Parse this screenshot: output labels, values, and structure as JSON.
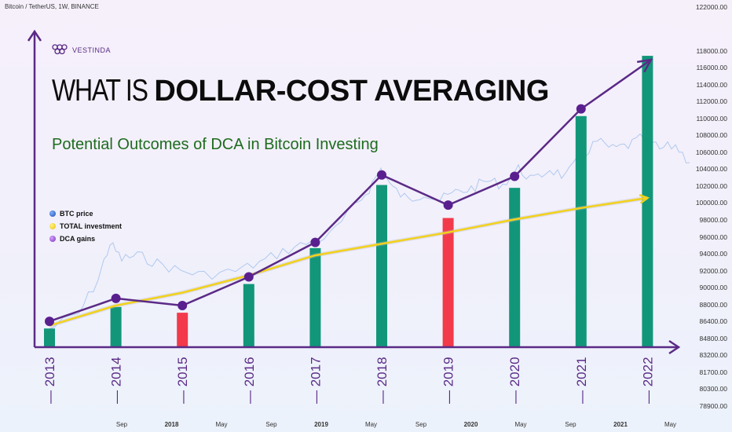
{
  "header": {
    "symbol_label": "Bitcoin / TetherUS, 1W, BINANCE"
  },
  "brand": {
    "name": "VESTINDA",
    "logo_icon": "grape-cluster-icon"
  },
  "headline": {
    "part1": "WHAT IS ",
    "part2": "DOLLAR-COST AVERAGING"
  },
  "subtitle": "Potential Outcomes of DCA in Bitcoin Investing",
  "legend": [
    {
      "label": "BTC price",
      "color": "#2f6fd0"
    },
    {
      "label": "TOTAL investment",
      "color": "#f2d21b"
    },
    {
      "label": "DCA gains",
      "color": "#8e3fc4"
    }
  ],
  "price_axis": [
    "122000.00",
    "118000.00",
    "116000.00",
    "114000.00",
    "112000.00",
    "110000.00",
    "108000.00",
    "106000.00",
    "104000.00",
    "102000.00",
    "100000.00",
    "98000.00",
    "96000.00",
    "94000.00",
    "92000.00",
    "90000.00",
    "88000.00",
    "86400.00",
    "84800.00",
    "83200.00",
    "81700.00",
    "80300.00",
    "78900.00"
  ],
  "time_axis": [
    {
      "label": "Sep",
      "bold": false
    },
    {
      "label": "2018",
      "bold": true
    },
    {
      "label": "May",
      "bold": false
    },
    {
      "label": "Sep",
      "bold": false
    },
    {
      "label": "2019",
      "bold": true
    },
    {
      "label": "May",
      "bold": false
    },
    {
      "label": "Sep",
      "bold": false
    },
    {
      "label": "2020",
      "bold": true
    },
    {
      "label": "May",
      "bold": false
    },
    {
      "label": "Sep",
      "bold": false
    },
    {
      "label": "2021",
      "bold": true
    },
    {
      "label": "May",
      "bold": false
    }
  ],
  "colors": {
    "gain_bar": "#12967a",
    "loss_bar": "#f23a4b",
    "axis": "#5b2a86",
    "investment_line": "#f2d21b",
    "price_line": "#a9c4ec"
  },
  "chart_data": {
    "type": "bar",
    "categories": [
      "2013",
      "2014",
      "2015",
      "2016",
      "2017",
      "2018",
      "2019",
      "2020",
      "2021",
      "2022"
    ],
    "series": [
      {
        "values": [
          1.3,
          2.8,
          2.4,
          4.4,
          6.9,
          11.3,
          9.0,
          11.1,
          16.1,
          20.3
        ],
        "outcome": [
          "gain",
          "gain",
          "loss",
          "gain",
          "gain",
          "gain",
          "loss",
          "gain",
          "gain",
          "gain"
        ]
      },
      {
        "name": "DCA gains",
        "values": [
          1.8,
          3.4,
          2.9,
          4.9,
          7.3,
          12.0,
          9.9,
          11.9,
          16.6,
          null
        ]
      },
      {
        "name": "TOTAL investment",
        "values": [
          1.5,
          2.9,
          3.8,
          5.0,
          6.4,
          7.2,
          8.0,
          8.9,
          9.7,
          10.4
        ]
      }
    ],
    "ylim": [
      0,
      22
    ],
    "grid": false,
    "legend_position": "left"
  }
}
